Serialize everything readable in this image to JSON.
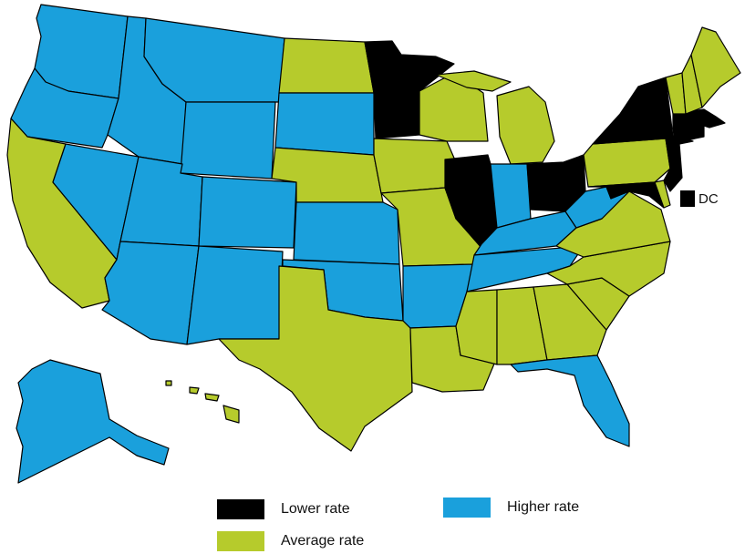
{
  "colors": {
    "lower": "#000000",
    "average": "#b6cb2c",
    "higher": "#1aa0dc",
    "border": "#000000"
  },
  "legend": {
    "lower": "Lower rate",
    "average": "Average rate",
    "higher": "Higher rate"
  },
  "dc": {
    "label": "DC",
    "category": "lower"
  },
  "states": {
    "WA": "higher",
    "OR": "higher",
    "CA": "average",
    "NV": "higher",
    "ID": "higher",
    "MT": "higher",
    "WY": "higher",
    "UT": "higher",
    "AZ": "higher",
    "CO": "higher",
    "NM": "higher",
    "ND": "average",
    "SD": "higher",
    "NE": "average",
    "KS": "higher",
    "OK": "higher",
    "TX": "average",
    "MN": "lower",
    "IA": "average",
    "MO": "average",
    "AR": "higher",
    "LA": "average",
    "WI": "average",
    "IL": "lower",
    "MI": "average",
    "IN": "higher",
    "OH": "lower",
    "KY": "higher",
    "TN": "higher",
    "MS": "average",
    "AL": "average",
    "GA": "average",
    "FL": "higher",
    "SC": "average",
    "NC": "average",
    "VA": "average",
    "WV": "higher",
    "PA": "average",
    "NY": "lower",
    "NJ": "lower",
    "DE": "average",
    "MD": "lower",
    "CT": "lower",
    "RI": "lower",
    "MA": "lower",
    "VT": "average",
    "NH": "average",
    "ME": "average",
    "AK": "higher",
    "HI": "average"
  }
}
